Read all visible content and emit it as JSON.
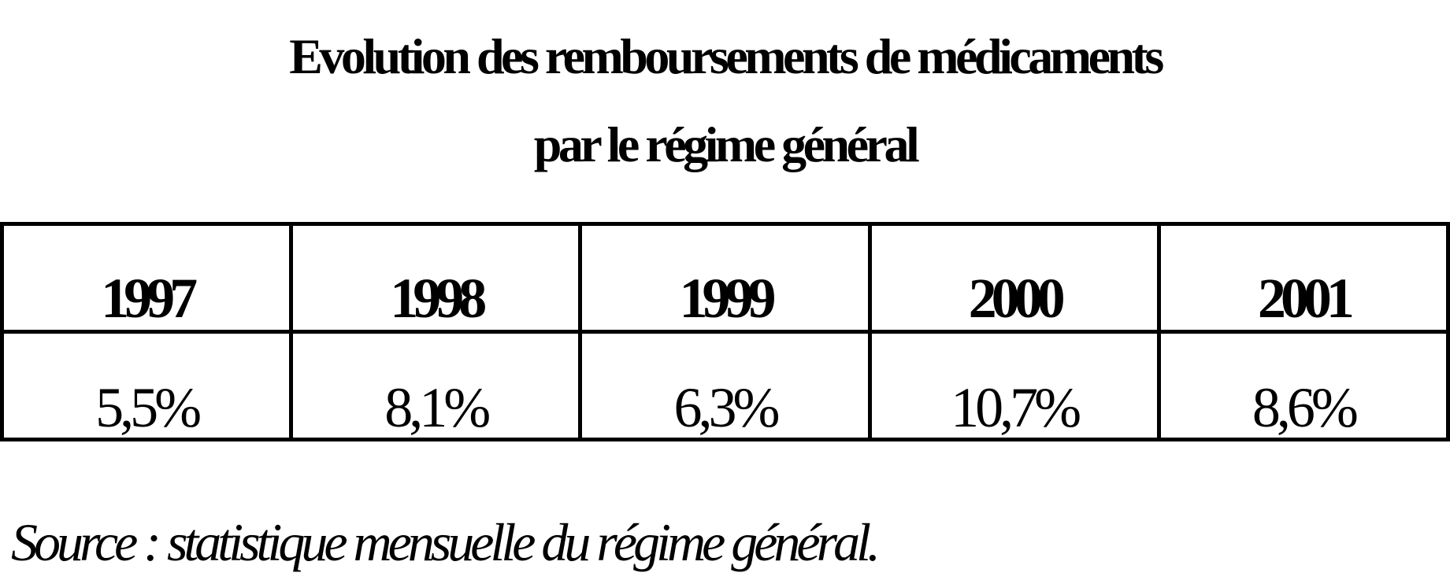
{
  "header": {
    "title_lines": [
      "Evolution des remboursements de médicaments",
      "par le régime général"
    ]
  },
  "table": {
    "rows": [
      [
        "1997",
        "1998",
        "1999",
        "2000",
        "2001"
      ],
      [
        "5,5%",
        "8,1%",
        "6,3%",
        "10,7%",
        "8,6%"
      ]
    ]
  },
  "footer": {
    "source": "Source : statistique mensuelle du régime général."
  }
}
